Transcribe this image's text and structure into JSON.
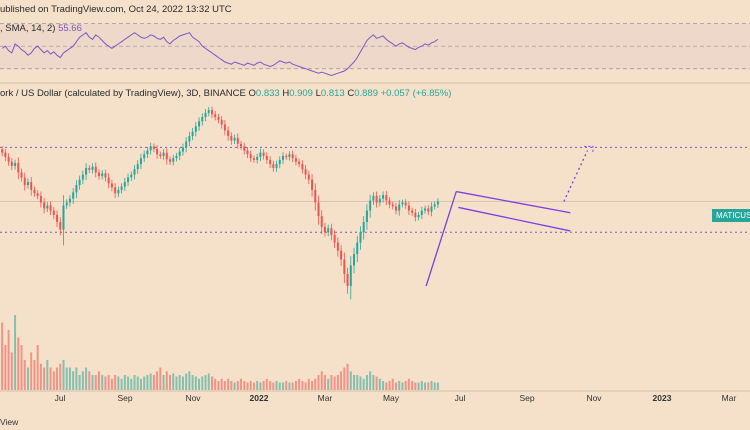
{
  "header": {
    "published": "ublished on TradingView.com, Oct 24, 2022 13:32 UTC"
  },
  "rsi_legend": {
    "label": ", SMA, 14, 2)",
    "value": "55.66"
  },
  "price_legend": {
    "symbol": "ork / US Dollar (calculated by TradingView), 3D, BINANCE",
    "open_label": "O",
    "open": "0.833",
    "high_label": "H",
    "high": "0.909",
    "low_label": "L",
    "low": "0.813",
    "close_label": "C",
    "close": "0.889",
    "change": "+0.057 (+6.85%)"
  },
  "price_tag": "MATICUSD",
  "x_axis": [
    {
      "label": "Jul",
      "bold": false
    },
    {
      "label": "Sep",
      "bold": false
    },
    {
      "label": "Nov",
      "bold": false
    },
    {
      "label": "2022",
      "bold": true
    },
    {
      "label": "Mar",
      "bold": false
    },
    {
      "label": "May",
      "bold": false
    },
    {
      "label": "Jul",
      "bold": false
    },
    {
      "label": "Sep",
      "bold": false
    },
    {
      "label": "Nov",
      "bold": false
    },
    {
      "label": "2023",
      "bold": true
    },
    {
      "label": "Mar",
      "bold": false
    }
  ],
  "footer": "View",
  "colors": {
    "background": "#f5e1ca",
    "up": "#26a69a",
    "down": "#ef5350",
    "pattern": "#7b3fe4",
    "level": "#7e57c2",
    "rsi": "#7e57c2"
  },
  "chart_data": {
    "type": "candlestick",
    "symbol": "MATICUSD",
    "interval": "3D",
    "exchange": "BINANCE",
    "last": {
      "open": 0.833,
      "high": 0.909,
      "low": 0.813,
      "close": 0.889,
      "change": 0.057,
      "change_pct": 6.85
    },
    "x_ticks": [
      "Jul",
      "Sep",
      "Nov",
      "2022",
      "Mar",
      "May",
      "Jul",
      "Sep",
      "Nov",
      "2023",
      "Mar"
    ],
    "rsi": {
      "period": 14,
      "value": 55.66
    },
    "candles_close": [
      1.58,
      1.5,
      1.42,
      1.35,
      1.4,
      1.25,
      1.18,
      1.08,
      1.12,
      1.02,
      0.98,
      0.95,
      0.88,
      0.82,
      0.85,
      0.8,
      0.76,
      0.7,
      0.64,
      0.85,
      0.88,
      0.92,
      0.99,
      1.08,
      1.15,
      1.22,
      1.32,
      1.29,
      1.34,
      1.25,
      1.2,
      1.24,
      1.18,
      1.1,
      1.05,
      0.98,
      1.02,
      1.06,
      1.12,
      1.18,
      1.22,
      1.3,
      1.38,
      1.48,
      1.55,
      1.62,
      1.7,
      1.65,
      1.55,
      1.52,
      1.58,
      1.46,
      1.42,
      1.48,
      1.52,
      1.6,
      1.68,
      1.8,
      1.92,
      2.02,
      2.15,
      2.28,
      2.4,
      2.52,
      2.6,
      2.48,
      2.4,
      2.32,
      2.2,
      2.05,
      1.92,
      1.82,
      1.88,
      1.75,
      1.7,
      1.62,
      1.55,
      1.48,
      1.45,
      1.5,
      1.58,
      1.52,
      1.45,
      1.38,
      1.32,
      1.38,
      1.45,
      1.52,
      1.5,
      1.55,
      1.48,
      1.42,
      1.38,
      1.3,
      1.22,
      1.15,
      1.02,
      0.88,
      0.75,
      0.66,
      0.62,
      0.65,
      0.6,
      0.55,
      0.5,
      0.45,
      0.38,
      0.33,
      0.42,
      0.48,
      0.55,
      0.62,
      0.7,
      0.8,
      0.9,
      0.95,
      0.88,
      0.92,
      0.96,
      0.9,
      0.86,
      0.84,
      0.8,
      0.86,
      0.88,
      0.85,
      0.8,
      0.78,
      0.74,
      0.76,
      0.8,
      0.82,
      0.79,
      0.84,
      0.86,
      0.89
    ],
    "volume_relative": [
      0.9,
      0.6,
      0.8,
      0.5,
      1.0,
      0.7,
      0.6,
      0.4,
      0.3,
      0.5,
      0.4,
      0.6,
      0.35,
      0.3,
      0.4,
      0.3,
      0.25,
      0.3,
      0.35,
      0.4,
      0.3,
      0.3,
      0.25,
      0.3,
      0.2,
      0.25,
      0.3,
      0.25,
      0.2,
      0.2,
      0.25,
      0.2,
      0.18,
      0.2,
      0.15,
      0.2,
      0.18,
      0.15,
      0.2,
      0.18,
      0.15,
      0.2,
      0.18,
      0.15,
      0.18,
      0.2,
      0.22,
      0.2,
      0.25,
      0.3,
      0.2,
      0.25,
      0.2,
      0.22,
      0.18,
      0.2,
      0.18,
      0.22,
      0.25,
      0.2,
      0.18,
      0.15,
      0.18,
      0.2,
      0.22,
      0.18,
      0.15,
      0.12,
      0.15,
      0.12,
      0.15,
      0.12,
      0.1,
      0.12,
      0.15,
      0.12,
      0.1,
      0.12,
      0.1,
      0.12,
      0.1,
      0.12,
      0.15,
      0.12,
      0.1,
      0.12,
      0.1,
      0.1,
      0.12,
      0.1,
      0.1,
      0.12,
      0.15,
      0.12,
      0.1,
      0.15,
      0.12,
      0.15,
      0.2,
      0.25,
      0.2,
      0.15,
      0.2,
      0.18,
      0.2,
      0.25,
      0.3,
      0.35,
      0.25,
      0.2,
      0.2,
      0.18,
      0.15,
      0.2,
      0.25,
      0.2,
      0.18,
      0.15,
      0.12,
      0.1,
      0.12,
      0.15,
      0.1,
      0.12,
      0.1,
      0.12,
      0.15,
      0.12,
      0.1,
      0.1,
      0.12,
      0.1,
      0.1,
      0.12,
      0.1,
      0.1
    ],
    "rsi_series": [
      48,
      50,
      46,
      44,
      52,
      50,
      47,
      45,
      42,
      44,
      48,
      50,
      47,
      44,
      46,
      43,
      45,
      42,
      40,
      44,
      46,
      48,
      50,
      54,
      58,
      60,
      62,
      58,
      56,
      60,
      58,
      55,
      52,
      50,
      48,
      50,
      52,
      54,
      56,
      58,
      60,
      62,
      60,
      58,
      57,
      58,
      60,
      59,
      57,
      56,
      58,
      54,
      52,
      55,
      57,
      59,
      60,
      61,
      62,
      58,
      56,
      54,
      50,
      48,
      46,
      44,
      42,
      40,
      38,
      36,
      35,
      34,
      36,
      35,
      34,
      33,
      35,
      34,
      33,
      35,
      36,
      34,
      33,
      32,
      33,
      35,
      37,
      36,
      35,
      36,
      34,
      33,
      32,
      31,
      30,
      29,
      28,
      27,
      26,
      27,
      26,
      25,
      24,
      25,
      26,
      27,
      28,
      30,
      33,
      36,
      40,
      45,
      50,
      55,
      58,
      60,
      57,
      58,
      59,
      56,
      54,
      52,
      50,
      52,
      53,
      51,
      49,
      48,
      47,
      49,
      50,
      52,
      51,
      53,
      54,
      56
    ],
    "levels": [
      1.68,
      0.62
    ],
    "flag_pattern": {
      "pole": [
        {
          "date": "2022-06-18",
          "price": 0.33
        },
        {
          "date": "2022-07-16",
          "price": 1.0
        }
      ],
      "upper": [
        {
          "date": "2022-07-16",
          "price": 1.0
        },
        {
          "date": "2022-10-30",
          "price": 0.78
        }
      ],
      "lower": [
        {
          "date": "2022-07-18",
          "price": 0.83
        },
        {
          "date": "2022-10-30",
          "price": 0.63
        }
      ],
      "projection": [
        {
          "date": "2022-10-24",
          "price": 0.89
        },
        {
          "date": "2022-11-15",
          "price": 1.62
        }
      ],
      "target_arrow": [
        {
          "date": "2022-11-12",
          "price": 1.58
        },
        {
          "date": "2022-11-20",
          "price": 1.7
        }
      ]
    }
  }
}
